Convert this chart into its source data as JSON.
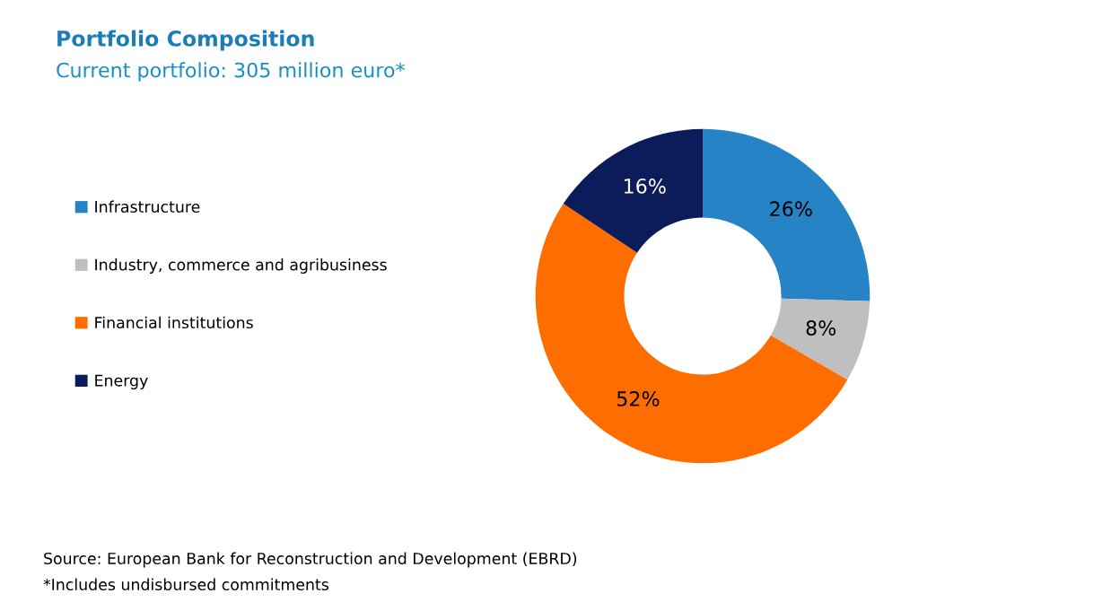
{
  "chart_data": {
    "type": "donut",
    "title": "Portfolio Composition",
    "subtitle": "Current portfolio: 305 million euro*",
    "categories": [
      "Infrastructure",
      "Industry, commerce and agribusiness",
      "Financial institutions",
      "Energy"
    ],
    "values": [
      26,
      8,
      52,
      16
    ],
    "colors": [
      "#2683c6",
      "#bfbfbf",
      "#ff6d00",
      "#0c1c5a"
    ],
    "value_labels": [
      "26%",
      "8%",
      "52%",
      "16%"
    ],
    "legend": "left",
    "annotations": [
      "Source: European Bank for Reconstruction and Development (EBRD)",
      "*Includes undisbursed commitments"
    ]
  }
}
